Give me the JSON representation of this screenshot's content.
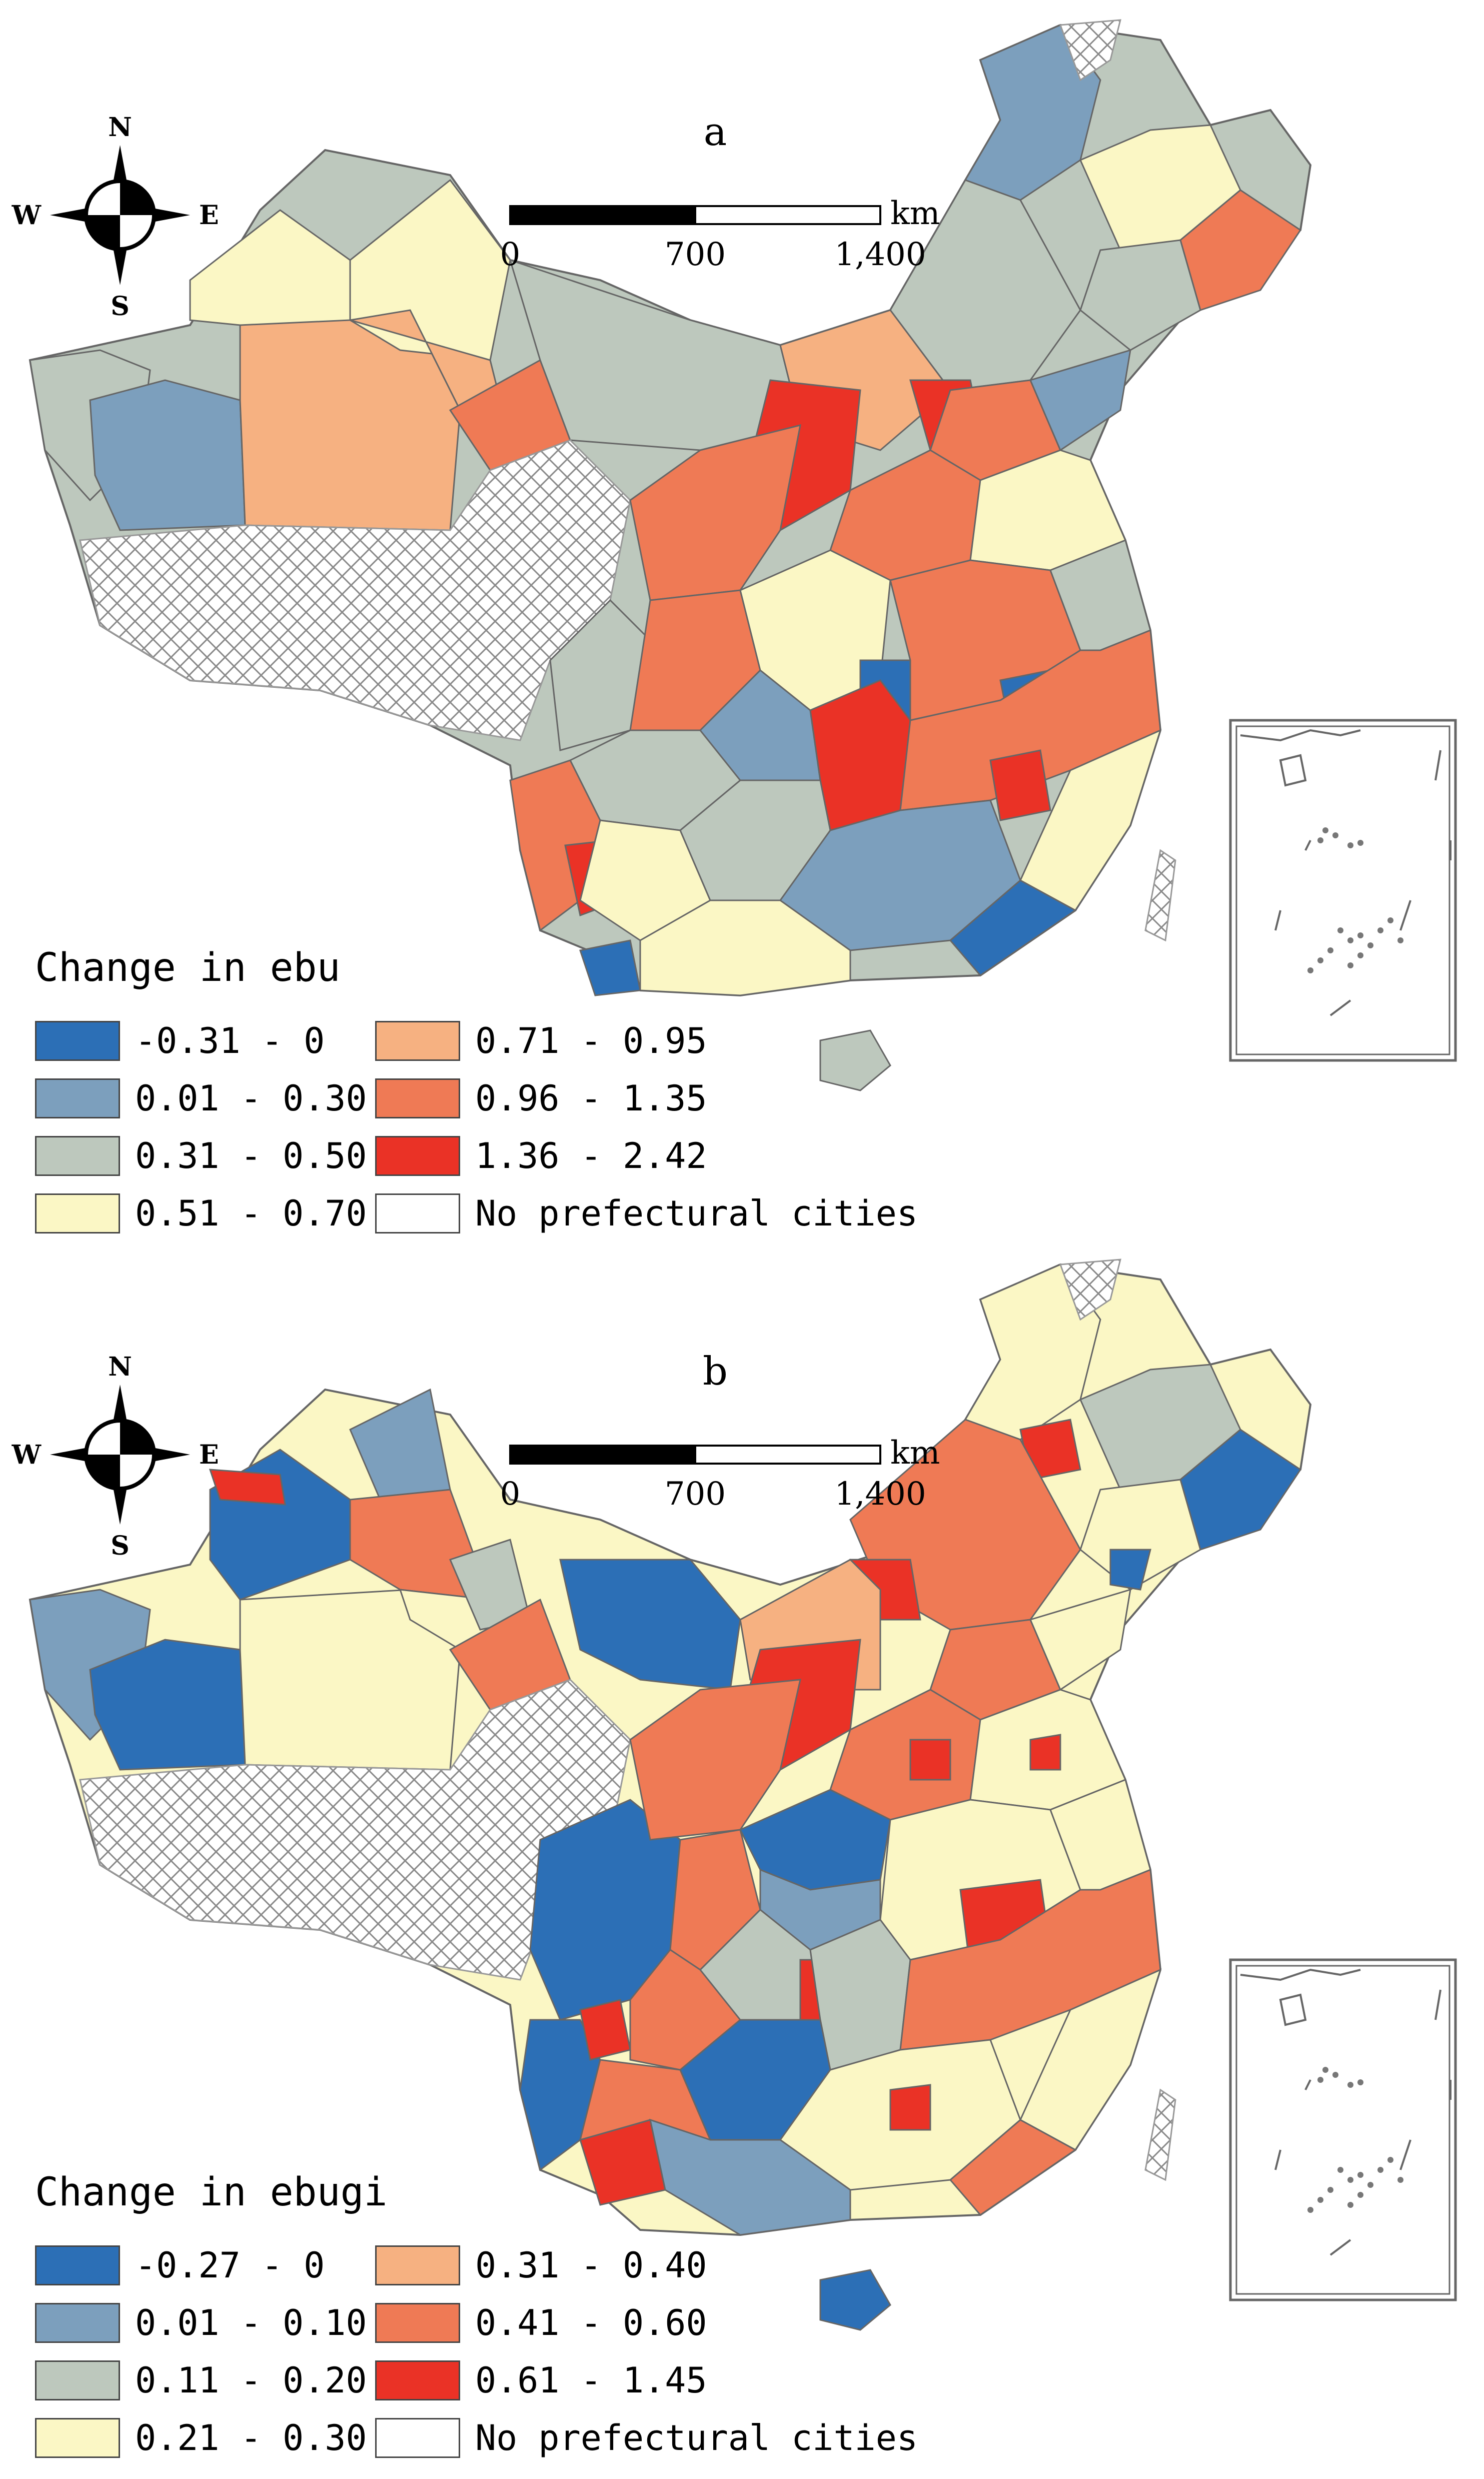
{
  "panels": [
    {
      "label": "a",
      "legend_title": "Change in ebu",
      "classes": [
        {
          "range": "-0.31 - 0",
          "color": "#2c6fb6"
        },
        {
          "range": "0.01 - 0.30",
          "color": "#7c9fbd"
        },
        {
          "range": "0.31 - 0.50",
          "color": "#bdc8bd"
        },
        {
          "range": "0.51 - 0.70",
          "color": "#fbf7c5"
        },
        {
          "range": "0.71 - 0.95",
          "color": "#f6b181"
        },
        {
          "range": "0.96 - 1.35",
          "color": "#ef7a55"
        },
        {
          "range": "1.36 - 2.42",
          "color": "#ea3226"
        }
      ],
      "no_data_label": "No prefectural cities",
      "scale": {
        "ticks": [
          "0",
          "700",
          "1,400"
        ],
        "unit": "km"
      },
      "compass": {
        "n": "N",
        "s": "S",
        "e": "E",
        "w": "W"
      }
    },
    {
      "label": "b",
      "legend_title": "Change in ebugi",
      "classes": [
        {
          "range": "-0.27 - 0",
          "color": "#2c6fb6"
        },
        {
          "range": "0.01 - 0.10",
          "color": "#7c9fbd"
        },
        {
          "range": "0.11 - 0.20",
          "color": "#bdc8bd"
        },
        {
          "range": "0.21 - 0.30",
          "color": "#fbf7c5"
        },
        {
          "range": "0.31 - 0.40",
          "color": "#f6b181"
        },
        {
          "range": "0.41 - 0.60",
          "color": "#ef7a55"
        },
        {
          "range": "0.61 - 1.45",
          "color": "#ea3226"
        }
      ],
      "no_data_label": "No prefectural cities",
      "scale": {
        "ticks": [
          "0",
          "700",
          "1,400"
        ],
        "unit": "km"
      },
      "compass": {
        "n": "N",
        "s": "S",
        "e": "E",
        "w": "W"
      }
    }
  ],
  "hatch_color": "#8a8a8a",
  "border_color": "#666666"
}
